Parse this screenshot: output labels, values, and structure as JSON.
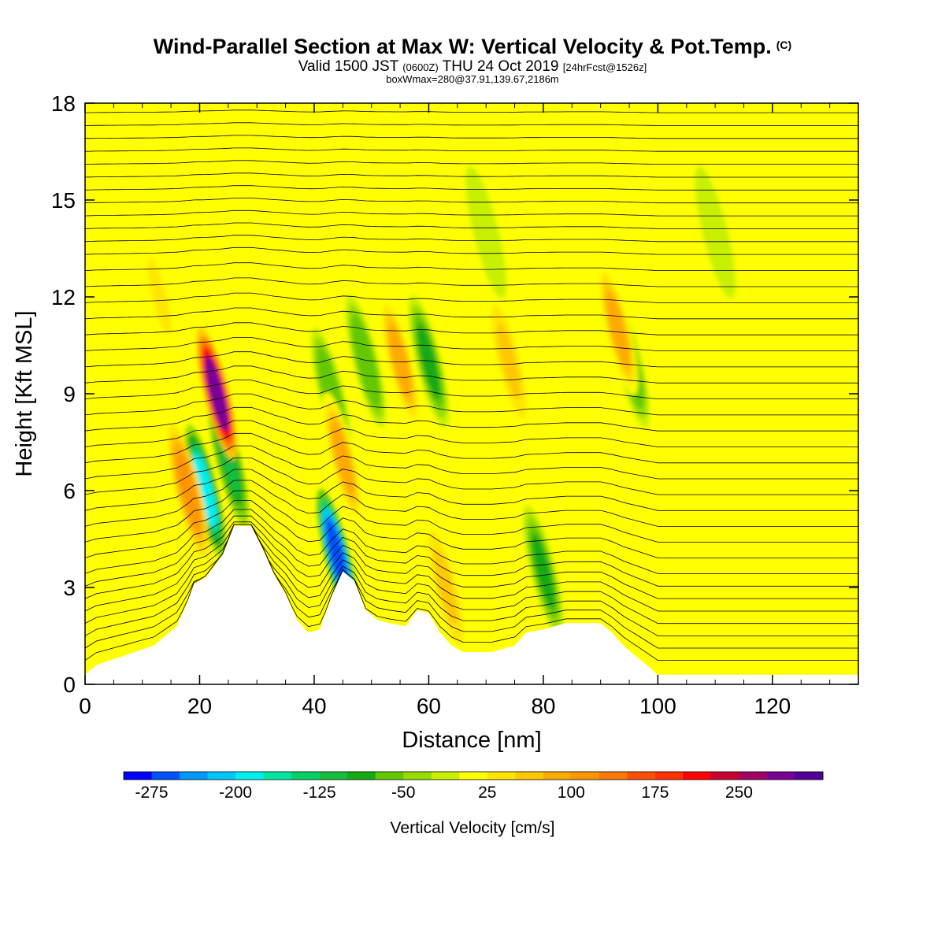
{
  "title": {
    "main": "Wind-Parallel Section at Max W: Vertical Velocity & Pot.Temp.",
    "copyright": "(C)",
    "valid_prefix": "Valid 1500 JST",
    "valid_utc": "(0600Z)",
    "valid_date": "THU 24 Oct 2019",
    "forecast": "[24hrFcst@1526z]",
    "box": "boxWmax=280@37.91,139.67,2186m"
  },
  "colors": {
    "background_field": "#ffff00",
    "terrain": "#ffffff",
    "scale": [
      "#0000ff",
      "#0050ff",
      "#0096ff",
      "#00c8ff",
      "#00f0f0",
      "#00e6a0",
      "#00d264",
      "#14be3c",
      "#14aa14",
      "#64c800",
      "#96dc00",
      "#c8f000",
      "#ffff00",
      "#ffe600",
      "#ffc800",
      "#ffaa00",
      "#ff9600",
      "#ff7800",
      "#ff5000",
      "#ff3200",
      "#ff0000",
      "#c80032",
      "#a00064",
      "#780096",
      "#500096"
    ]
  },
  "chart_data": {
    "type": "heatmap",
    "xlabel": "Distance [nm]",
    "ylabel": "Height [Kft MSL]",
    "xlim": [
      0,
      135
    ],
    "ylim": [
      0,
      18
    ],
    "xticks": [
      0,
      20,
      40,
      60,
      80,
      100,
      120
    ],
    "yticks": [
      0,
      3,
      6,
      9,
      12,
      15,
      18
    ],
    "colorbar": {
      "label": "Vertical Velocity [cm/s]",
      "ticks": [
        -275,
        -200,
        -125,
        -50,
        25,
        100,
        175,
        250
      ],
      "min": -300,
      "max": 325,
      "step": 25
    },
    "terrain_profile": [
      [
        0,
        0.3
      ],
      [
        2,
        0.6
      ],
      [
        7,
        0.9
      ],
      [
        12,
        1.2
      ],
      [
        16,
        1.8
      ],
      [
        18,
        2.6
      ],
      [
        19,
        3.1
      ],
      [
        21,
        3.3
      ],
      [
        24,
        4.0
      ],
      [
        26,
        4.9
      ],
      [
        29,
        4.9
      ],
      [
        31,
        4.2
      ],
      [
        33,
        3.4
      ],
      [
        35,
        2.8
      ],
      [
        37,
        2.0
      ],
      [
        39,
        1.6
      ],
      [
        41,
        1.7
      ],
      [
        43,
        2.7
      ],
      [
        45,
        3.5
      ],
      [
        47,
        3.2
      ],
      [
        49,
        2.3
      ],
      [
        51,
        2.0
      ],
      [
        53,
        1.9
      ],
      [
        56,
        1.8
      ],
      [
        58,
        2.3
      ],
      [
        60,
        2.2
      ],
      [
        62,
        1.6
      ],
      [
        64,
        1.2
      ],
      [
        66,
        1.0
      ],
      [
        71,
        1.0
      ],
      [
        75,
        1.2
      ],
      [
        77,
        1.6
      ],
      [
        80,
        1.7
      ],
      [
        82,
        1.8
      ],
      [
        84,
        1.9
      ],
      [
        88,
        1.9
      ],
      [
        90,
        1.9
      ],
      [
        92,
        1.6
      ],
      [
        94,
        1.2
      ],
      [
        96,
        0.9
      ],
      [
        98,
        0.6
      ],
      [
        100,
        0.3
      ],
      [
        135,
        0.3
      ]
    ],
    "updraft_cores": [
      {
        "x": 23,
        "y": 9,
        "value": 280
      },
      {
        "x": 18,
        "y": 6,
        "value": 100
      },
      {
        "x": 45,
        "y": 7,
        "value": 75
      },
      {
        "x": 55,
        "y": 10,
        "value": 75
      },
      {
        "x": 63,
        "y": 3,
        "value": 60
      },
      {
        "x": 74,
        "y": 10,
        "value": 50
      },
      {
        "x": 93,
        "y": 11,
        "value": 75
      },
      {
        "x": 13,
        "y": 12,
        "value": 25
      }
    ],
    "downdraft_cores": [
      {
        "x": 21,
        "y": 6,
        "value": -200
      },
      {
        "x": 25,
        "y": 7,
        "value": -125
      },
      {
        "x": 44,
        "y": 4,
        "value": -275
      },
      {
        "x": 43,
        "y": 9,
        "value": -75
      },
      {
        "x": 60,
        "y": 10,
        "value": -100
      },
      {
        "x": 49,
        "y": 10,
        "value": -75
      },
      {
        "x": 80,
        "y": 3.5,
        "value": -100
      },
      {
        "x": 95,
        "y": 10,
        "value": -75
      },
      {
        "x": 110,
        "y": 14,
        "value": -25
      },
      {
        "x": 70,
        "y": 14,
        "value": -25
      }
    ],
    "isentrope_levels": [
      0.5,
      0.9,
      1.3,
      1.7,
      2.1,
      2.5,
      2.9,
      3.3,
      3.8,
      4.3,
      4.8,
      5.3,
      5.8,
      6.3,
      6.8,
      7.3,
      7.8,
      8.3,
      8.8,
      9.3,
      9.8,
      10.3,
      10.8,
      11.3,
      11.8,
      12.3,
      12.8,
      13.3,
      13.7,
      14.1,
      14.5,
      14.9,
      15.3,
      15.7,
      16.1,
      16.5,
      16.9,
      17.3,
      17.7
    ]
  }
}
